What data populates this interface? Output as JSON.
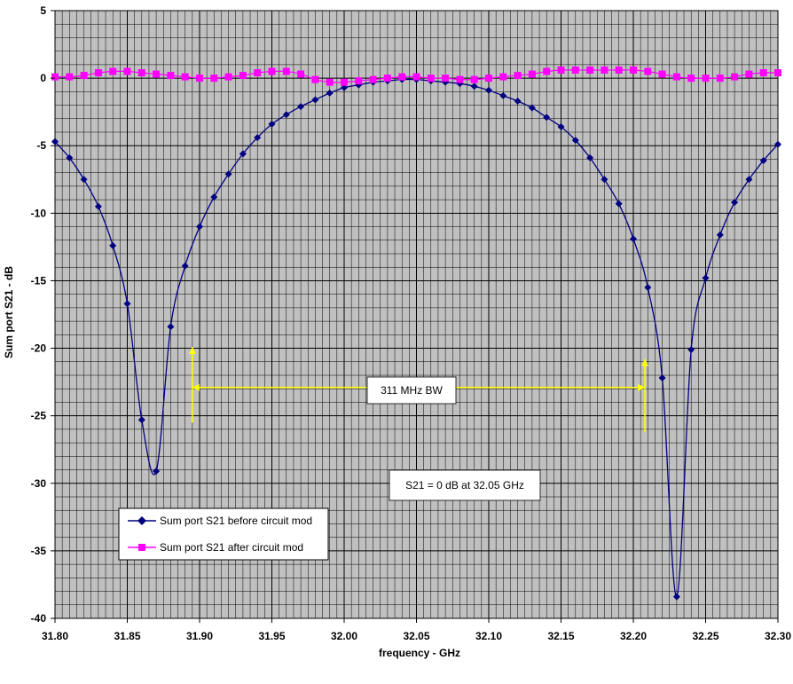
{
  "chart_data": {
    "type": "line",
    "title": "",
    "xlabel": "frequency - GHz",
    "ylabel": "Sum port S21 - dB",
    "xlim": [
      31.8,
      32.3
    ],
    "ylim": [
      -40,
      5
    ],
    "x_ticks": [
      "31.80",
      "31.85",
      "31.90",
      "31.95",
      "32.00",
      "32.05",
      "32.10",
      "32.15",
      "32.20",
      "32.25",
      "32.30"
    ],
    "y_ticks": [
      "5",
      "0",
      "-5",
      "-10",
      "-15",
      "-20",
      "-25",
      "-30",
      "-35",
      "-40"
    ],
    "grid": true,
    "plot_background": "#c0c0c0",
    "legend_position": "lower-left",
    "series": [
      {
        "name": "Sum port S21 before circuit mod",
        "color": "#000080",
        "marker": "diamond",
        "x": [
          31.8,
          31.81,
          31.82,
          31.83,
          31.84,
          31.85,
          31.86,
          31.87,
          31.88,
          31.89,
          31.9,
          31.91,
          31.92,
          31.93,
          31.94,
          31.95,
          31.96,
          31.97,
          31.98,
          31.99,
          32.0,
          32.01,
          32.02,
          32.03,
          32.04,
          32.05,
          32.06,
          32.07,
          32.08,
          32.09,
          32.1,
          32.11,
          32.12,
          32.13,
          32.14,
          32.15,
          32.16,
          32.17,
          32.18,
          32.19,
          32.2,
          32.21,
          32.22,
          32.23,
          32.24,
          32.25,
          32.26,
          32.27,
          32.28,
          32.29,
          32.3
        ],
        "y": [
          -4.7,
          -5.9,
          -7.5,
          -9.5,
          -12.4,
          -16.7,
          -25.3,
          -29.1,
          -18.4,
          -13.9,
          -11.0,
          -8.8,
          -7.1,
          -5.6,
          -4.4,
          -3.4,
          -2.7,
          -2.1,
          -1.6,
          -1.1,
          -0.7,
          -0.5,
          -0.3,
          -0.2,
          -0.1,
          -0.1,
          -0.2,
          -0.3,
          -0.4,
          -0.6,
          -0.9,
          -1.3,
          -1.7,
          -2.2,
          -2.9,
          -3.6,
          -4.6,
          -5.9,
          -7.5,
          -9.3,
          -11.9,
          -15.5,
          -22.2,
          -38.4,
          -20.1,
          -14.8,
          -11.6,
          -9.2,
          -7.5,
          -6.1,
          -4.9
        ]
      },
      {
        "name": "Sum port S21 after circuit mod",
        "color": "#ff00ff",
        "marker": "square",
        "x": [
          31.8,
          31.81,
          31.82,
          31.83,
          31.84,
          31.85,
          31.86,
          31.87,
          31.88,
          31.89,
          31.9,
          31.91,
          31.92,
          31.93,
          31.94,
          31.95,
          31.96,
          31.97,
          31.98,
          31.99,
          32.0,
          32.01,
          32.02,
          32.03,
          32.04,
          32.05,
          32.06,
          32.07,
          32.08,
          32.09,
          32.1,
          32.11,
          32.12,
          32.13,
          32.14,
          32.15,
          32.16,
          32.17,
          32.18,
          32.19,
          32.2,
          32.21,
          32.22,
          32.23,
          32.24,
          32.25,
          32.26,
          32.27,
          32.28,
          32.29,
          32.3
        ],
        "y": [
          0.1,
          0.1,
          0.2,
          0.4,
          0.5,
          0.5,
          0.4,
          0.3,
          0.2,
          0.1,
          0.0,
          0.0,
          0.1,
          0.2,
          0.4,
          0.5,
          0.5,
          0.3,
          -0.1,
          -0.3,
          -0.3,
          -0.2,
          -0.1,
          0.0,
          0.1,
          0.1,
          0.0,
          0.0,
          -0.1,
          -0.1,
          0.0,
          0.1,
          0.2,
          0.3,
          0.5,
          0.6,
          0.6,
          0.6,
          0.6,
          0.6,
          0.6,
          0.5,
          0.3,
          0.1,
          0.0,
          0.0,
          0.0,
          0.1,
          0.3,
          0.4,
          0.4
        ]
      }
    ],
    "annotations": [
      {
        "text": "311 MHz BW",
        "x": 32.05,
        "y": -23.2
      },
      {
        "text": "S21 = 0 dB at 32.05 GHz",
        "x": 32.045,
        "y": -30.4
      }
    ],
    "bandwidth_marker": {
      "x_start": 31.895,
      "x_end": 32.208,
      "y": -22.9,
      "color": "#ffff00"
    }
  }
}
